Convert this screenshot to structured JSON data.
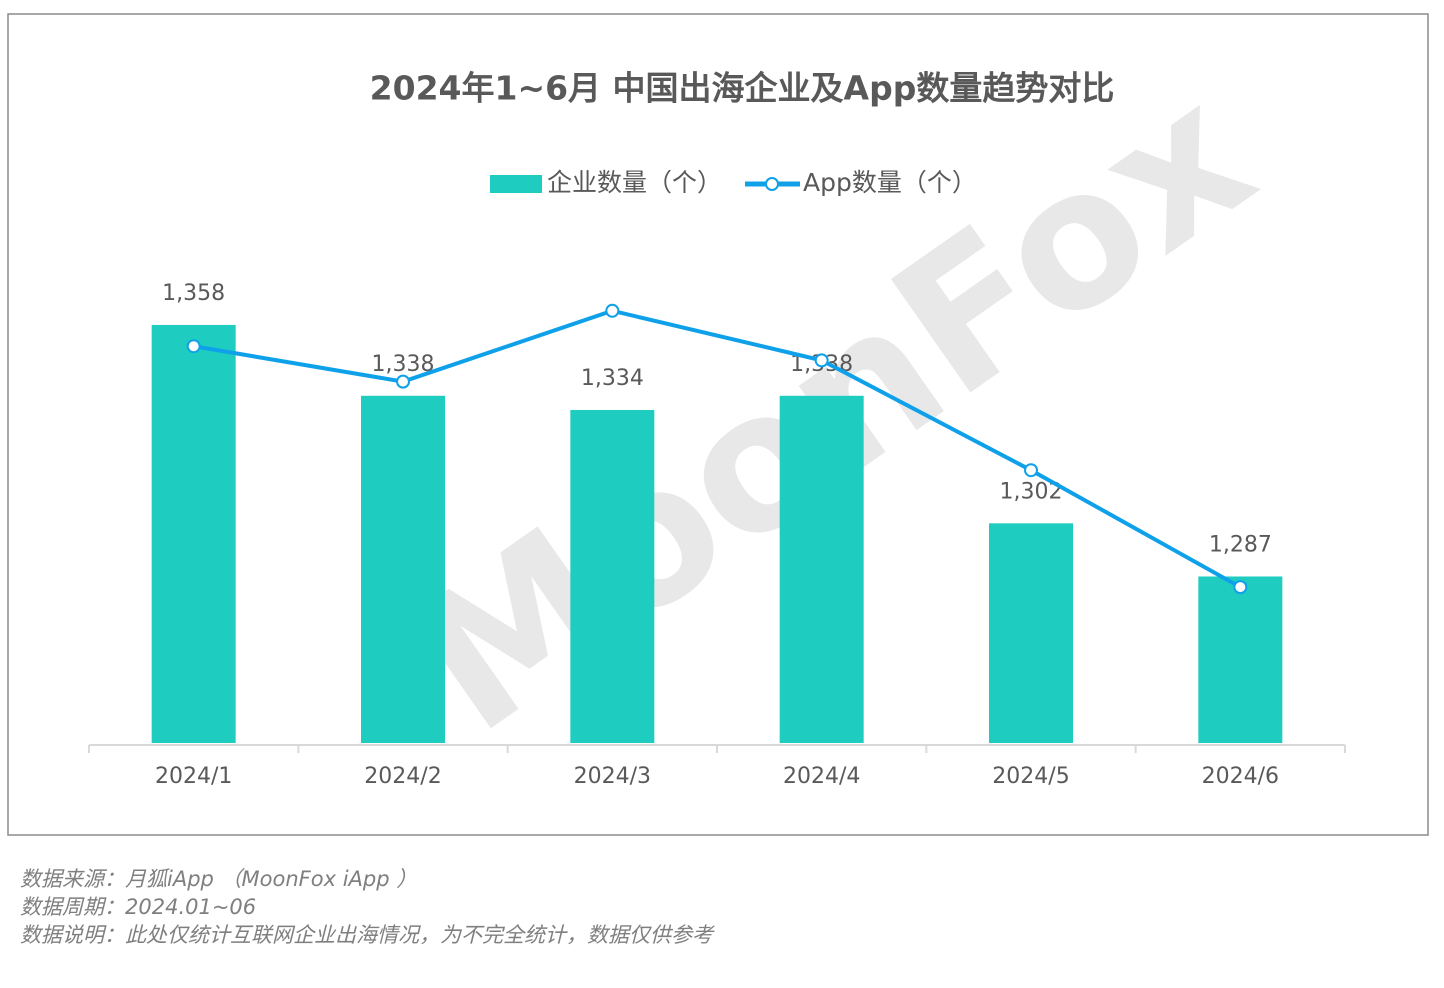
{
  "chart_data": {
    "type": "combo",
    "title": "2024年1~6月 中国出海企业及App数量趋势对比",
    "categories": [
      "2024/1",
      "2024/2",
      "2024/3",
      "2024/4",
      "2024/5",
      "2024/6"
    ],
    "series": [
      {
        "name": "企业数量（个）",
        "type": "bar",
        "color": "#1ecdbf",
        "values": [
          1358,
          1338,
          1334,
          1338,
          1302,
          1287
        ],
        "value_labels": [
          "1,358",
          "1,338",
          "1,334",
          "1,338",
          "1,302",
          "1,287"
        ]
      },
      {
        "name": "App数量（个）",
        "type": "line",
        "color": "#0ea1ea",
        "values": [
          1352,
          1342,
          1362,
          1348,
          1317,
          1284
        ]
      }
    ],
    "ylim": [
      1240,
      1380
    ],
    "watermark": "MoonFox",
    "notes": [
      "数据来源：月狐iApp （MoonFox iApp ）",
      "数据周期：2024.01~06",
      "数据说明：此处仅统计互联网企业出海情况，为不完全统计，数据仅供参考"
    ]
  }
}
